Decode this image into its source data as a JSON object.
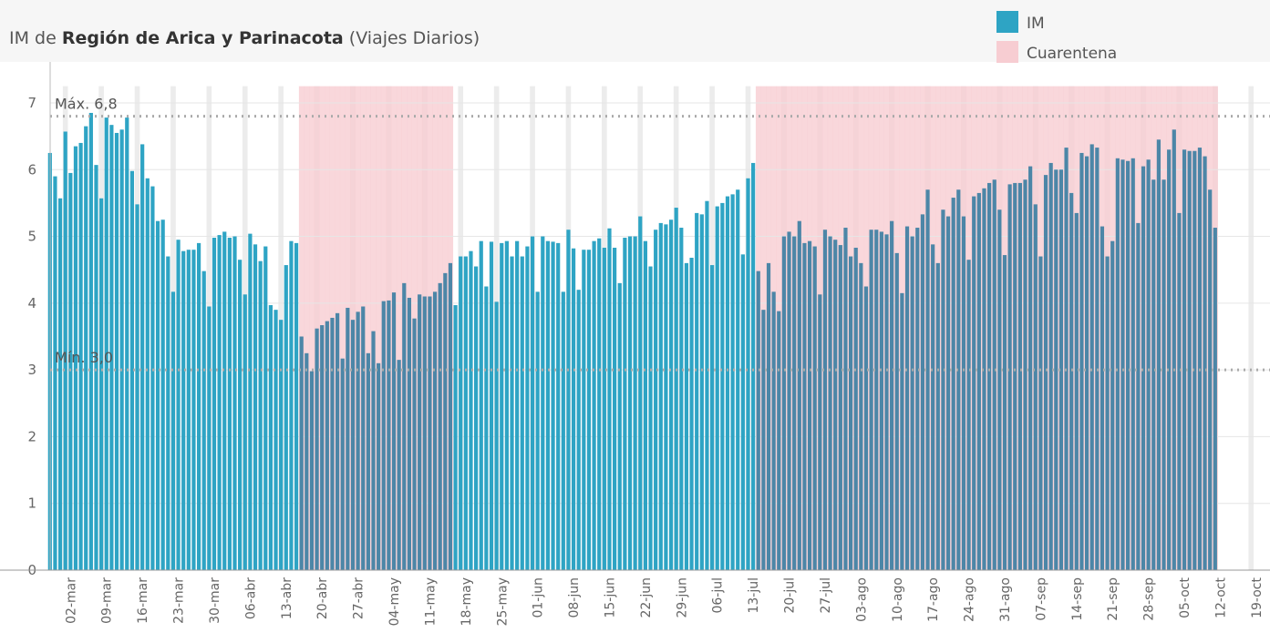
{
  "chart_data": {
    "type": "bar",
    "title_prefix": "IM de",
    "title_bold": "Región de Arica y Parinacota",
    "title_suffix": "(Viajes Diarios)",
    "categories": [
      null,
      null,
      null,
      null,
      "02-mar",
      null,
      null,
      null,
      null,
      null,
      null,
      "09-mar",
      null,
      null,
      null,
      null,
      null,
      null,
      "16-mar",
      null,
      null,
      null,
      null,
      null,
      null,
      "23-mar",
      null,
      null,
      null,
      null,
      null,
      null,
      "30-mar",
      null,
      null,
      null,
      null,
      null,
      null,
      "06-abr",
      null,
      null,
      null,
      null,
      null,
      null,
      "13-abr",
      null,
      null,
      null,
      null,
      null,
      null,
      "20-abr",
      null,
      null,
      null,
      null,
      null,
      null,
      "27-abr",
      null,
      null,
      null,
      null,
      null,
      null,
      "04-may",
      null,
      null,
      null,
      null,
      null,
      null,
      "11-may",
      null,
      null,
      null,
      null,
      null,
      null,
      "18-may",
      null,
      null,
      null,
      null,
      null,
      null,
      "25-may",
      null,
      null,
      null,
      null,
      null,
      null,
      "01-jun",
      null,
      null,
      null,
      null,
      null,
      null,
      "08-jun",
      null,
      null,
      null,
      null,
      null,
      null,
      "15-jun",
      null,
      null,
      null,
      null,
      null,
      null,
      "22-jun",
      null,
      null,
      null,
      null,
      null,
      null,
      "29-jun",
      null,
      null,
      null,
      null,
      null,
      null,
      "06-jul",
      null,
      null,
      null,
      null,
      null,
      null,
      "13-jul",
      null,
      null,
      null,
      null,
      null,
      null,
      "20-jul",
      null,
      null,
      null,
      null,
      null,
      null,
      "27-jul",
      null,
      null,
      null,
      null,
      null,
      null,
      "03-ago",
      null,
      null,
      null,
      null,
      null,
      null,
      "10-ago",
      null,
      null,
      null,
      null,
      null,
      null,
      "17-ago",
      null,
      null,
      null,
      null,
      null,
      null,
      "24-ago",
      null,
      null,
      null,
      null,
      null,
      null,
      "31-ago",
      null,
      null,
      null,
      null,
      null,
      null,
      "07-sep",
      null,
      null,
      null,
      null,
      null,
      null,
      "14-sep",
      null,
      null,
      null,
      null,
      null,
      null,
      "21-sep",
      null,
      null,
      null,
      null,
      null,
      null,
      "28-sep",
      null,
      null,
      null,
      null,
      null,
      null,
      "05-oct",
      null,
      null,
      null,
      null,
      null,
      null,
      "12-oct",
      null,
      null,
      null,
      null,
      null,
      null,
      "19-oct"
    ],
    "series": [
      {
        "name": "IM",
        "color": "#2ea4c4",
        "quarantine_color": "#4c86a7",
        "values": [
          6.25,
          5.9,
          5.57,
          6.57,
          5.95,
          6.35,
          6.4,
          6.65,
          6.85,
          6.07,
          5.57,
          6.78,
          6.67,
          6.55,
          6.6,
          6.78,
          5.98,
          5.48,
          6.38,
          5.87,
          5.75,
          5.23,
          5.25,
          4.7,
          4.17,
          4.95,
          4.78,
          4.8,
          4.8,
          4.9,
          4.48,
          3.95,
          4.98,
          5.02,
          5.07,
          4.98,
          5.0,
          4.65,
          4.13,
          5.04,
          4.88,
          4.63,
          4.85,
          3.97,
          3.9,
          3.75,
          4.57,
          4.93,
          4.9,
          3.5,
          3.25,
          2.98,
          3.62,
          3.67,
          3.73,
          3.78,
          3.85,
          3.17,
          3.93,
          3.75,
          3.87,
          3.95,
          3.25,
          3.58,
          3.1,
          4.03,
          4.04,
          4.16,
          3.15,
          4.3,
          4.08,
          3.77,
          4.13,
          4.1,
          4.1,
          4.17,
          4.3,
          4.45,
          4.6,
          3.97,
          4.7,
          4.7,
          4.78,
          4.55,
          4.93,
          4.25,
          4.92,
          4.02,
          4.9,
          4.93,
          4.7,
          4.93,
          4.7,
          4.85,
          5.0,
          4.17,
          5.0,
          4.93,
          4.92,
          4.9,
          4.17,
          5.1,
          4.82,
          4.2,
          4.8,
          4.8,
          4.93,
          4.97,
          4.83,
          5.12,
          4.83,
          4.3,
          4.98,
          5.0,
          5.0,
          5.3,
          4.93,
          4.55,
          5.1,
          5.2,
          5.18,
          5.25,
          5.43,
          5.13,
          4.6,
          4.68,
          5.35,
          5.33,
          5.53,
          4.57,
          5.45,
          5.5,
          5.6,
          5.63,
          5.7,
          4.73,
          5.87,
          6.1,
          4.48,
          3.9,
          4.6,
          4.17,
          3.88,
          5.0,
          5.07,
          5.0,
          5.23,
          4.9,
          4.93,
          4.85,
          4.13,
          5.1,
          5.0,
          4.95,
          4.87,
          5.13,
          4.7,
          4.83,
          4.6,
          4.25,
          5.1,
          5.1,
          5.07,
          5.03,
          5.23,
          4.75,
          4.15,
          5.15,
          5.0,
          5.13,
          5.33,
          5.7,
          4.88,
          4.6,
          5.4,
          5.3,
          5.58,
          5.7,
          5.3,
          4.65,
          5.6,
          5.65,
          5.72,
          5.8,
          5.85,
          5.4,
          4.72,
          5.78,
          5.8,
          5.8,
          5.85,
          6.05,
          5.48,
          4.7,
          5.92,
          6.1,
          6.0,
          6.0,
          6.33,
          5.65,
          5.35,
          6.25,
          6.2,
          6.38,
          6.33,
          5.15,
          4.7,
          4.93,
          6.17,
          6.15,
          6.13,
          6.17,
          5.2,
          6.05,
          6.15,
          5.85,
          6.45,
          5.85,
          6.3,
          6.6,
          5.35,
          6.3,
          6.28,
          6.28,
          6.33,
          6.2,
          5.7,
          5.13,
          null,
          null,
          null,
          null,
          null,
          null,
          null,
          null
        ]
      },
      {
        "name": "Cuarentena",
        "color": "#f7cdd2",
        "values": [
          null,
          null,
          null,
          null,
          null,
          null,
          null,
          null,
          null,
          null,
          null,
          null,
          null,
          null,
          null,
          null,
          null,
          null,
          null,
          null,
          null,
          null,
          null,
          null,
          null,
          null,
          null,
          null,
          null,
          null,
          null,
          null,
          null,
          null,
          null,
          null,
          null,
          null,
          null,
          null,
          null,
          null,
          null,
          null,
          null,
          null,
          null,
          null,
          null,
          7.25,
          7.25,
          7.25,
          7.25,
          7.25,
          7.25,
          7.25,
          7.25,
          7.25,
          7.25,
          7.25,
          7.25,
          7.25,
          7.25,
          7.25,
          7.25,
          7.25,
          7.25,
          7.25,
          7.25,
          7.25,
          7.25,
          7.25,
          7.25,
          7.25,
          7.25,
          7.25,
          7.25,
          7.25,
          7.25,
          null,
          null,
          null,
          null,
          null,
          null,
          null,
          null,
          null,
          null,
          null,
          null,
          null,
          null,
          null,
          null,
          null,
          null,
          null,
          null,
          null,
          null,
          null,
          null,
          null,
          null,
          null,
          null,
          null,
          null,
          null,
          null,
          null,
          null,
          null,
          null,
          null,
          null,
          null,
          null,
          null,
          null,
          null,
          null,
          null,
          null,
          null,
          null,
          null,
          null,
          null,
          null,
          null,
          null,
          null,
          null,
          null,
          null,
          null,
          7.25,
          7.25,
          7.25,
          7.25,
          7.25,
          7.25,
          7.25,
          7.25,
          7.25,
          7.25,
          7.25,
          7.25,
          7.25,
          7.25,
          7.25,
          7.25,
          7.25,
          7.25,
          7.25,
          7.25,
          7.25,
          7.25,
          7.25,
          7.25,
          7.25,
          7.25,
          7.25,
          7.25,
          7.25,
          7.25,
          7.25,
          7.25,
          7.25,
          7.25,
          7.25,
          7.25,
          7.25,
          7.25,
          7.25,
          7.25,
          7.25,
          7.25,
          7.25,
          7.25,
          7.25,
          7.25,
          7.25,
          7.25,
          7.25,
          7.25,
          7.25,
          7.25,
          7.25,
          7.25,
          7.25,
          7.25,
          7.25,
          7.25,
          7.25,
          7.25,
          7.25,
          7.25,
          7.25,
          7.25,
          7.25,
          7.25,
          7.25,
          7.25,
          7.25,
          7.25,
          7.25,
          7.25,
          7.25,
          7.25,
          7.25,
          7.25,
          7.25,
          7.25,
          7.25,
          7.25,
          7.25,
          7.25,
          7.25,
          7.25,
          7.25,
          7.25,
          7.25,
          7.25,
          7.25,
          7.25,
          null,
          null,
          null,
          null,
          null,
          null,
          null,
          null
        ]
      }
    ],
    "reference_lines": [
      {
        "label": "Máx. 6,8",
        "value": 6.8
      },
      {
        "label": "Mín. 3,0",
        "value": 3.0
      }
    ],
    "ylim": [
      0,
      7.6
    ],
    "yticks": [
      0,
      1,
      2,
      3,
      4,
      5,
      6,
      7
    ],
    "grid": true
  }
}
